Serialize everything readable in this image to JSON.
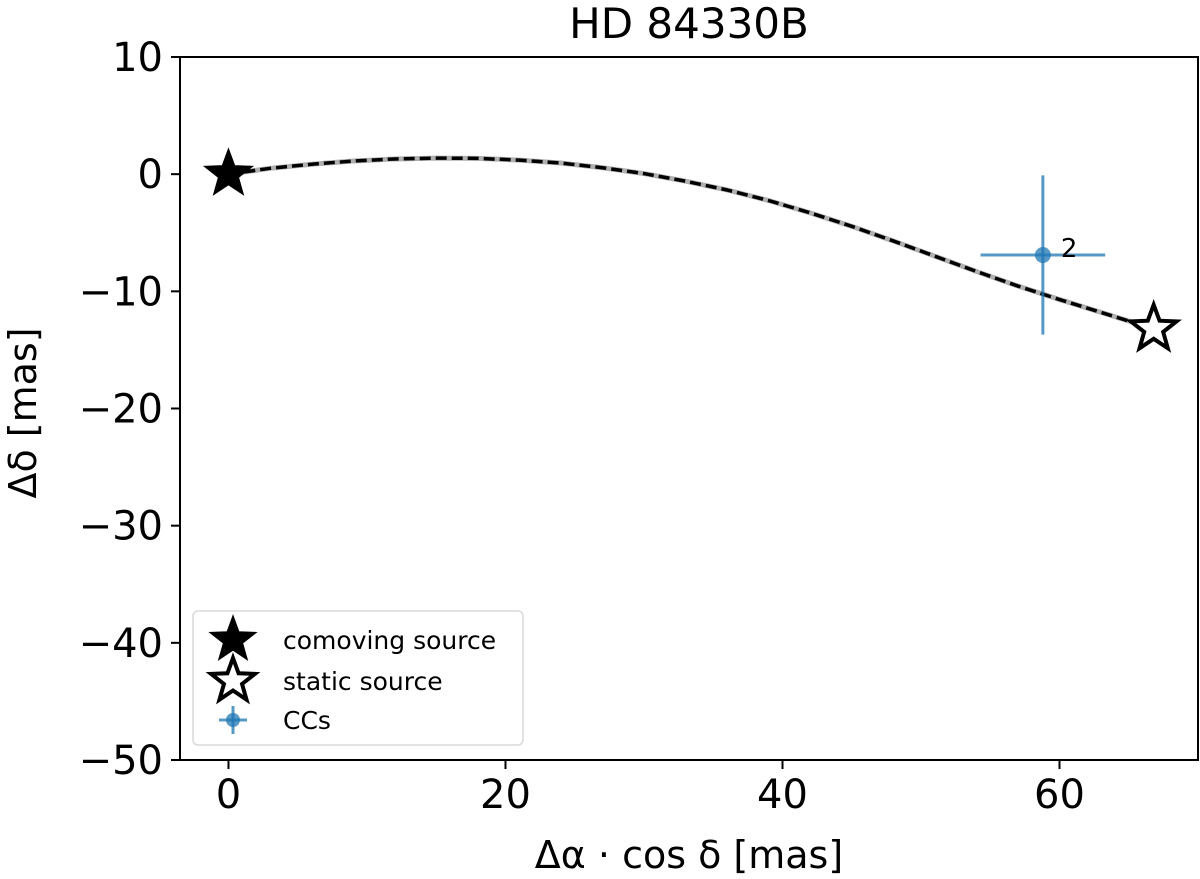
{
  "chart_data": {
    "type": "scatter",
    "title": "HD 84330B",
    "xlabel": "Δα · cos δ [mas]",
    "ylabel": "Δδ [mas]",
    "xlim": [
      -3.5,
      70
    ],
    "ylim": [
      -50,
      10
    ],
    "xticks": [
      0,
      20,
      40,
      60
    ],
    "yticks": [
      10,
      0,
      -10,
      -20,
      -30,
      -40,
      -50
    ],
    "xtick_labels": [
      "0",
      "20",
      "40",
      "60"
    ],
    "ytick_labels": [
      "10",
      "0",
      "−10",
      "−20",
      "−30",
      "−40",
      "−50"
    ],
    "grid": false,
    "legend_position": "lower-left",
    "legend": [
      {
        "label": "comoving source",
        "marker": "filled-star"
      },
      {
        "label": "static source",
        "marker": "open-star"
      },
      {
        "label": "CCs",
        "marker": "errorbar-point"
      }
    ],
    "comoving_source": {
      "x": 0,
      "y": 0
    },
    "static_source": {
      "x": 66.8,
      "y": -13.2
    },
    "track": {
      "style": "dashed",
      "points": [
        [
          0,
          0
        ],
        [
          3,
          0.5
        ],
        [
          6,
          0.85
        ],
        [
          9,
          1.12
        ],
        [
          12,
          1.3
        ],
        [
          15,
          1.37
        ],
        [
          18,
          1.35
        ],
        [
          21,
          1.2
        ],
        [
          24,
          0.95
        ],
        [
          27,
          0.55
        ],
        [
          30,
          0.05
        ],
        [
          33,
          -0.6
        ],
        [
          36,
          -1.35
        ],
        [
          39,
          -2.25
        ],
        [
          42,
          -3.3
        ],
        [
          45,
          -4.45
        ],
        [
          48,
          -5.7
        ],
        [
          51,
          -7.0
        ],
        [
          54,
          -8.3
        ],
        [
          57,
          -9.55
        ],
        [
          60,
          -10.7
        ],
        [
          63,
          -11.8
        ],
        [
          66.8,
          -13.2
        ]
      ]
    },
    "ccs": [
      {
        "x": 58.8,
        "y": -6.9,
        "xerr": 4.5,
        "yerr": 6.8,
        "label": "2"
      }
    ],
    "colors": {
      "ccs": "#1f77b4",
      "track": "#000000",
      "track_shadow": "#b0b0b0"
    }
  }
}
